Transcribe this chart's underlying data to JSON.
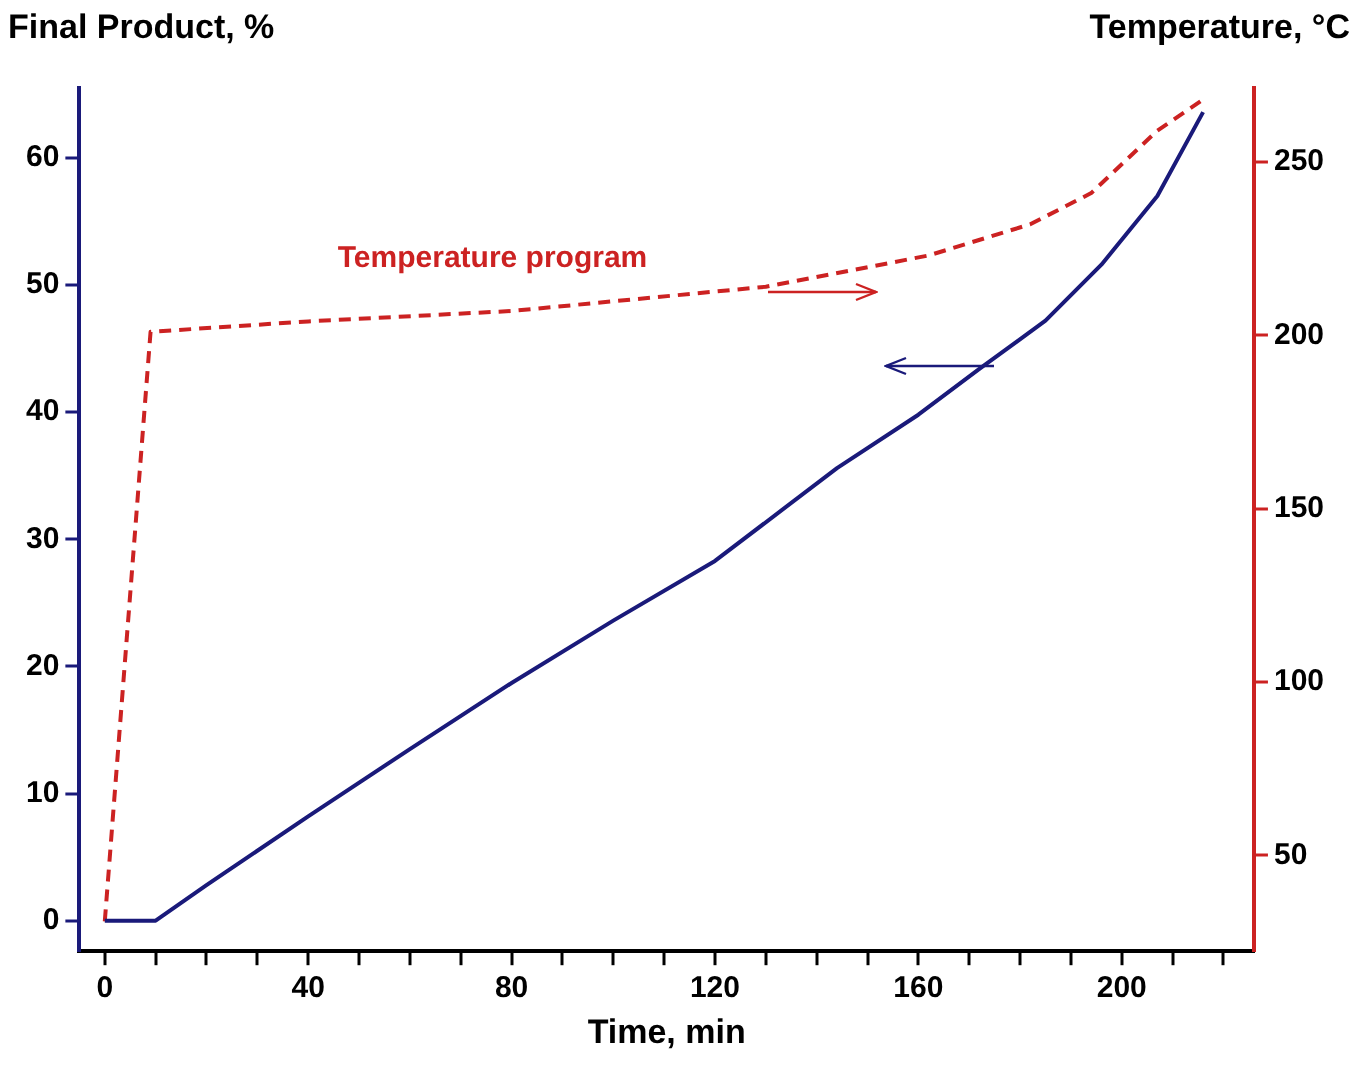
{
  "chart_data": {
    "type": "line",
    "xlabel": "Time, min",
    "ylabel": "Final Product, %",
    "y2label": "Temperature, °C",
    "annotations": [
      "Temperature program"
    ],
    "xlim": [
      -5,
      226
    ],
    "xticks": [
      0,
      {
        "value": 10,
        "label": null
      },
      {
        "value": 20,
        "label": null
      },
      {
        "value": 30,
        "label": null
      },
      40,
      {
        "value": 50,
        "label": null
      },
      {
        "value": 60,
        "label": null
      },
      {
        "value": 70,
        "label": null
      },
      80,
      {
        "value": 90,
        "label": null
      },
      {
        "value": 100,
        "label": null
      },
      {
        "value": 110,
        "label": null
      },
      120,
      {
        "value": 130,
        "label": null
      },
      {
        "value": 140,
        "label": null
      },
      {
        "value": 150,
        "label": null
      },
      160,
      {
        "value": 170,
        "label": null
      },
      {
        "value": 180,
        "label": null
      },
      {
        "value": 190,
        "label": null
      },
      200,
      {
        "value": 210,
        "label": null
      },
      {
        "value": 220,
        "label": null
      }
    ],
    "ylim": [
      -2.4,
      65.5
    ],
    "yticks": [
      0,
      10,
      20,
      30,
      40,
      50,
      60
    ],
    "y2lim": [
      22.4,
      271.3
    ],
    "y2ticks": [
      50,
      100,
      150,
      200,
      250
    ],
    "grid": false,
    "legend": false,
    "marker": "none",
    "series": [
      {
        "color": "#1a1a7a",
        "line_style": "solid",
        "x": [
          0,
          10,
          20,
          40,
          60,
          80,
          100,
          120,
          144,
          160,
          172,
          185,
          196,
          207,
          216
        ],
        "values": [
          0,
          0,
          2.8,
          8.2,
          13.5,
          18.7,
          23.6,
          28.3,
          35.6,
          39.8,
          43.4,
          47.2,
          51.6,
          57,
          63.6
        ]
      },
      {
        "color": "#cc2222",
        "axis": "y2",
        "line_style": "dashed",
        "x": [
          0,
          9,
          40,
          80,
          130,
          162,
          182,
          194,
          207,
          216
        ],
        "values": [
          31,
          201,
          204,
          207,
          214,
          223,
          232,
          241,
          259,
          268
        ]
      }
    ]
  }
}
